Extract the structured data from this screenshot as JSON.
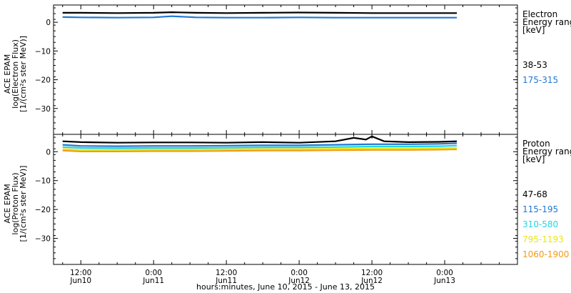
{
  "chart_data": {
    "xlabel": "hours:minutes, June 10, 2015 - June 13, 2015",
    "x_ticks": [
      {
        "t": 12,
        "time": "12:00",
        "date": "Jun10"
      },
      {
        "t": 24,
        "time": "0:00",
        "date": "Jun11"
      },
      {
        "t": 36,
        "time": "12:00",
        "date": "Jun11"
      },
      {
        "t": 48,
        "time": "0:00",
        "date": "Jun12"
      },
      {
        "t": 60,
        "time": "12:00",
        "date": "Jun12"
      },
      {
        "t": 72,
        "time": "0:00",
        "date": "Jun13"
      }
    ],
    "x_range_hours": [
      7.5,
      84
    ],
    "panels": [
      {
        "type": "line",
        "ylabel": [
          "ACE EPAM",
          "log(Electron Flux)",
          "[1/(cm²s ster MeV)]"
        ],
        "ylim": [
          -39,
          6
        ],
        "y_ticks": [
          0,
          -10,
          -20,
          -30
        ],
        "legend_title": [
          "Electron",
          "Energy range",
          "[keV]"
        ],
        "series": [
          {
            "name": "38-53",
            "color": "#000000",
            "x": [
              9,
              12,
              18,
              24,
              27,
              31,
              36,
              42,
              48,
              54,
              60,
              66,
              71,
              74
            ],
            "y": [
              3.3,
              3.3,
              3.2,
              3.3,
              3.5,
              3.3,
              3.2,
              3.3,
              3.4,
              3.3,
              3.2,
              3.2,
              3.2,
              3.2
            ]
          },
          {
            "name": "175-315",
            "color": "#1f78d4",
            "x": [
              9,
              12,
              18,
              24,
              27,
              31,
              36,
              42,
              48,
              54,
              60,
              66,
              71,
              74
            ],
            "y": [
              1.8,
              1.7,
              1.6,
              1.7,
              2.1,
              1.7,
              1.6,
              1.6,
              1.7,
              1.6,
              1.6,
              1.6,
              1.6,
              1.6
            ]
          }
        ]
      },
      {
        "type": "line",
        "ylabel": [
          "ACE EPAM",
          "log(Proton Flux)",
          "[1/(cm²s ster MeV)]"
        ],
        "ylim": [
          -39,
          6
        ],
        "y_ticks": [
          0,
          -10,
          -20,
          -30
        ],
        "legend_title": [
          "Proton",
          "Energy range",
          "[keV]"
        ],
        "series": [
          {
            "name": "47-68",
            "color": "#000000",
            "x": [
              9,
              12,
              18,
              24,
              30,
              36,
              42,
              48,
              54,
              57,
              59,
              60,
              62,
              66,
              71,
              74
            ],
            "y": [
              3.6,
              3.3,
              3.1,
              3.2,
              3.2,
              3.1,
              3.3,
              3.1,
              3.6,
              4.8,
              4.2,
              5.3,
              3.6,
              3.3,
              3.4,
              3.6
            ]
          },
          {
            "name": "115-195",
            "color": "#1f78d4",
            "x": [
              9,
              12,
              18,
              24,
              30,
              36,
              42,
              48,
              54,
              60,
              66,
              71,
              74
            ],
            "y": [
              2.4,
              2.0,
              1.9,
              2.0,
              2.0,
              2.1,
              2.2,
              2.2,
              2.4,
              2.6,
              2.6,
              2.7,
              2.9
            ]
          },
          {
            "name": "310-580",
            "color": "#22d4e0",
            "x": [
              9,
              12,
              18,
              24,
              30,
              36,
              42,
              48,
              54,
              60,
              66,
              71,
              74
            ],
            "y": [
              1.6,
              1.3,
              1.2,
              1.3,
              1.3,
              1.4,
              1.5,
              1.5,
              1.6,
              1.8,
              1.8,
              1.9,
              2.1
            ]
          },
          {
            "name": "795-1193",
            "color": "#e6e61a",
            "x": [
              9,
              12,
              18,
              24,
              30,
              36,
              42,
              48,
              54,
              60,
              66,
              71,
              74
            ],
            "y": [
              0.9,
              0.6,
              0.6,
              0.7,
              0.7,
              0.8,
              0.9,
              0.9,
              1.0,
              1.1,
              1.1,
              1.2,
              1.3
            ]
          },
          {
            "name": "1060-1900",
            "color": "#f39a1a",
            "x": [
              9,
              12,
              18,
              24,
              30,
              36,
              42,
              48,
              54,
              60,
              66,
              71,
              74
            ],
            "y": [
              0.4,
              0.1,
              0.1,
              0.2,
              0.2,
              0.3,
              0.4,
              0.4,
              0.5,
              0.6,
              0.6,
              0.7,
              0.8
            ]
          }
        ]
      }
    ]
  }
}
